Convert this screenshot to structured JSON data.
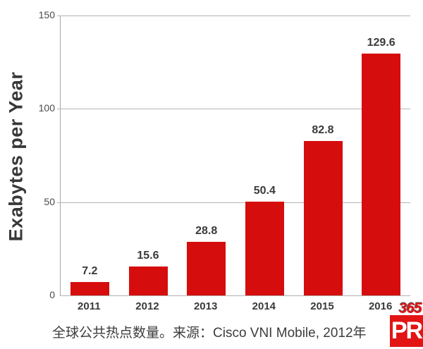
{
  "chart_data": {
    "type": "bar",
    "categories": [
      "2011",
      "2012",
      "2013",
      "2014",
      "2015",
      "2016"
    ],
    "values": [
      7.2,
      15.6,
      28.8,
      50.4,
      82.8,
      129.6
    ],
    "value_labels": [
      "7.2",
      "15.6",
      "28.8",
      "50.4",
      "82.8",
      "129.6"
    ],
    "title": "",
    "xlabel": "",
    "ylabel": "Exabytes per Year",
    "ylim": [
      0,
      150
    ],
    "yticks": [
      0,
      50,
      100,
      150
    ],
    "grid": "horizontal",
    "legend_position": "none",
    "bar_color": "#d60d0d"
  },
  "caption": {
    "text": "全球公共热点数量。来源：Cisco VNI Mobile, 2012年"
  },
  "logo": {
    "top_text": "365",
    "main_text": "PR",
    "color": "#e31414"
  },
  "colors": {
    "bar": "#d60d0d",
    "grid": "#b3b3b3",
    "axis": "#a8a8a8",
    "label_text": "#3a3a3a",
    "tick_text": "#4a4a4a",
    "caption_text": "#3d3d3d",
    "logo_red": "#e31414"
  }
}
